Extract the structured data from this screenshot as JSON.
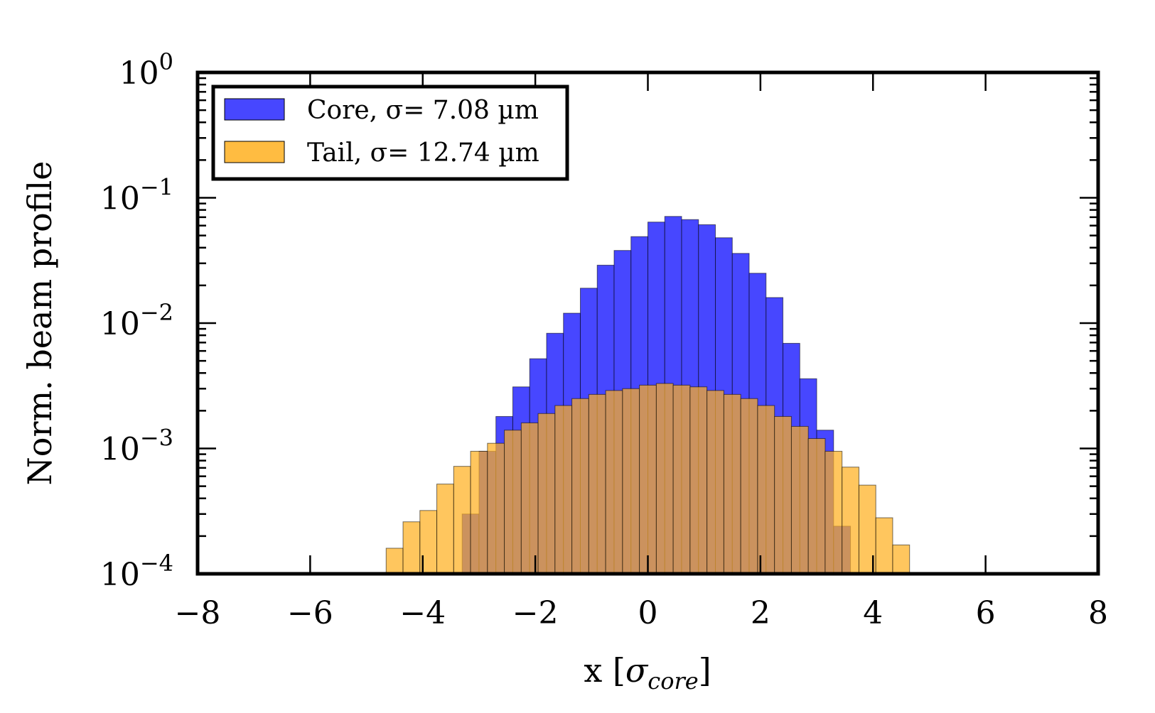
{
  "chart_data": {
    "type": "bar",
    "xlabel": "x [σcore]",
    "xlabel_parts": {
      "main": "x [",
      "sym": "σ",
      "sub": "core",
      "end": "]"
    },
    "ylabel": "Norm. beam profile",
    "xlim": [
      -8,
      8
    ],
    "ylim": [
      0.0001,
      1
    ],
    "y_scale": "log",
    "x_ticks": [
      "−8",
      "−6",
      "−4",
      "−2",
      "0",
      "2",
      "4",
      "6",
      "8"
    ],
    "y_ticks": [
      {
        "base": "10",
        "exp": "0"
      },
      {
        "base": "10",
        "exp": "−1"
      },
      {
        "base": "10",
        "exp": "−2"
      },
      {
        "base": "10",
        "exp": "−3"
      },
      {
        "base": "10",
        "exp": "−4"
      }
    ],
    "legend_position": "top-left",
    "bin_width": 0.3,
    "series": [
      {
        "name": "Core",
        "legend_label": "Core, σ= 7.08 µm",
        "color": "#3333ff",
        "bin_starts": [
          -3.6,
          -3.3,
          -3.0,
          -2.7,
          -2.4,
          -2.1,
          -1.8,
          -1.5,
          -1.2,
          -0.9,
          -0.6,
          -0.3,
          0.0,
          0.3,
          0.6,
          0.9,
          1.2,
          1.5,
          1.8,
          2.1,
          2.4,
          2.7,
          3.0,
          3.3
        ],
        "values": [
          0.0001,
          0.0003,
          0.00095,
          0.0018,
          0.0031,
          0.0052,
          0.0083,
          0.012,
          0.019,
          0.029,
          0.038,
          0.049,
          0.064,
          0.071,
          0.067,
          0.061,
          0.048,
          0.036,
          0.025,
          0.016,
          0.0069,
          0.0036,
          0.0014,
          0.00024
        ]
      },
      {
        "name": "Tail",
        "legend_label": "Tail, σ= 12.74 µm",
        "color": "#ffb020",
        "bin_starts": [
          -4.95,
          -4.65,
          -4.35,
          -4.05,
          -3.75,
          -3.45,
          -3.15,
          -2.85,
          -2.55,
          -2.25,
          -1.95,
          -1.65,
          -1.35,
          -1.05,
          -0.75,
          -0.45,
          -0.15,
          0.15,
          0.45,
          0.75,
          1.05,
          1.35,
          1.65,
          1.95,
          2.25,
          2.55,
          2.85,
          3.15,
          3.45,
          3.75,
          4.05,
          4.35
        ],
        "values": [
          0.0001,
          0.00016,
          0.00026,
          0.00032,
          0.00052,
          0.00072,
          0.00095,
          0.0011,
          0.0014,
          0.0016,
          0.0019,
          0.0022,
          0.0025,
          0.0027,
          0.0029,
          0.003,
          0.0032,
          0.0033,
          0.0032,
          0.0031,
          0.0029,
          0.0027,
          0.0025,
          0.0022,
          0.0018,
          0.0015,
          0.0012,
          0.00095,
          0.00071,
          0.00051,
          0.00028,
          0.00017
        ]
      }
    ]
  }
}
